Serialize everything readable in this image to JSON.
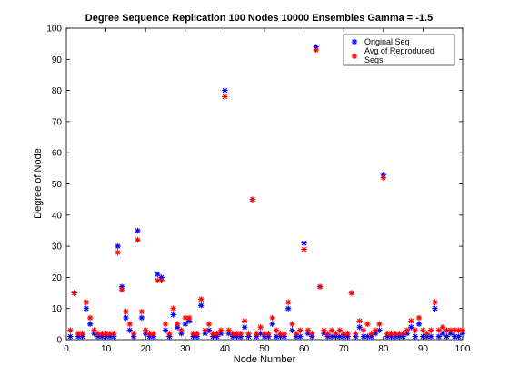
{
  "chart_data": {
    "type": "scatter",
    "title": "Degree Sequence Replication 100 Nodes 10000 Ensembles Gamma = -1.5",
    "xlabel": "Node Number",
    "ylabel": "Degree of Node",
    "xlim": [
      0,
      100
    ],
    "ylim": [
      0,
      100
    ],
    "xticks": [
      "0",
      "10",
      "20",
      "30",
      "40",
      "50",
      "60",
      "70",
      "80",
      "90",
      "100"
    ],
    "yticks": [
      "0",
      "10",
      "20",
      "30",
      "40",
      "50",
      "60",
      "70",
      "80",
      "90",
      "100"
    ],
    "grid": false,
    "legend_position": "top-right",
    "marker": "*",
    "series": [
      {
        "name": "Original Seq",
        "color": "#0000ff",
        "x": [
          1,
          2,
          3,
          4,
          5,
          6,
          7,
          8,
          9,
          10,
          11,
          12,
          13,
          14,
          15,
          16,
          17,
          18,
          19,
          20,
          21,
          22,
          23,
          24,
          25,
          26,
          27,
          28,
          29,
          30,
          31,
          32,
          33,
          34,
          35,
          36,
          37,
          38,
          39,
          40,
          41,
          42,
          43,
          44,
          45,
          46,
          47,
          48,
          49,
          50,
          51,
          52,
          53,
          54,
          55,
          56,
          57,
          58,
          59,
          60,
          61,
          62,
          63,
          64,
          65,
          66,
          67,
          68,
          69,
          70,
          71,
          72,
          73,
          74,
          75,
          76,
          77,
          78,
          79,
          80,
          81,
          82,
          83,
          84,
          85,
          86,
          87,
          88,
          89,
          90,
          91,
          92,
          93,
          94,
          95,
          96,
          97,
          98,
          99,
          100
        ],
        "y": [
          1,
          15,
          1,
          1,
          10,
          5,
          2,
          1,
          1,
          1,
          1,
          1,
          30,
          17,
          7,
          3,
          1,
          35,
          7,
          2,
          1,
          1,
          21,
          20,
          3,
          1,
          8,
          4,
          2,
          5,
          6,
          1,
          1,
          11,
          2,
          3,
          1,
          1,
          2,
          80,
          2,
          1,
          1,
          1,
          4,
          1,
          45,
          1,
          2,
          1,
          1,
          5,
          1,
          1,
          1,
          10,
          3,
          1,
          1,
          31,
          2,
          1,
          94,
          17,
          2,
          1,
          1,
          1,
          1,
          1,
          1,
          15,
          1,
          4,
          1,
          1,
          1,
          2,
          3,
          53,
          1,
          1,
          1,
          1,
          1,
          2,
          4,
          1,
          5,
          1,
          1,
          1,
          10,
          1,
          2,
          1,
          2,
          1,
          1,
          2
        ]
      },
      {
        "name": "Avg of Reproduced Seqs",
        "color": "#ff0000",
        "x": [
          1,
          2,
          3,
          4,
          5,
          6,
          7,
          8,
          9,
          10,
          11,
          12,
          13,
          14,
          15,
          16,
          17,
          18,
          19,
          20,
          21,
          22,
          23,
          24,
          25,
          26,
          27,
          28,
          29,
          30,
          31,
          32,
          33,
          34,
          35,
          36,
          37,
          38,
          39,
          40,
          41,
          42,
          43,
          44,
          45,
          46,
          47,
          48,
          49,
          50,
          51,
          52,
          53,
          54,
          55,
          56,
          57,
          58,
          59,
          60,
          61,
          62,
          63,
          64,
          65,
          66,
          67,
          68,
          69,
          70,
          71,
          72,
          73,
          74,
          75,
          76,
          77,
          78,
          79,
          80,
          81,
          82,
          83,
          84,
          85,
          86,
          87,
          88,
          89,
          90,
          91,
          92,
          93,
          94,
          95,
          96,
          97,
          98,
          99,
          100
        ],
        "y": [
          3,
          15,
          2,
          2,
          12,
          7,
          3,
          2,
          2,
          2,
          2,
          2,
          28,
          16,
          9,
          5,
          2,
          32,
          9,
          3,
          2,
          2,
          19,
          19,
          5,
          2,
          10,
          5,
          3,
          7,
          7,
          2,
          2,
          13,
          3,
          5,
          2,
          2,
          3,
          78,
          3,
          2,
          2,
          2,
          6,
          2,
          45,
          2,
          4,
          2,
          2,
          7,
          3,
          2,
          2,
          12,
          5,
          2,
          3,
          29,
          3,
          2,
          93,
          17,
          3,
          2,
          3,
          2,
          3,
          2,
          2,
          15,
          2,
          6,
          3,
          5,
          2,
          3,
          5,
          52,
          2,
          2,
          2,
          2,
          2,
          3,
          6,
          3,
          7,
          3,
          2,
          3,
          12,
          3,
          4,
          3,
          3,
          3,
          3,
          3
        ]
      }
    ]
  }
}
